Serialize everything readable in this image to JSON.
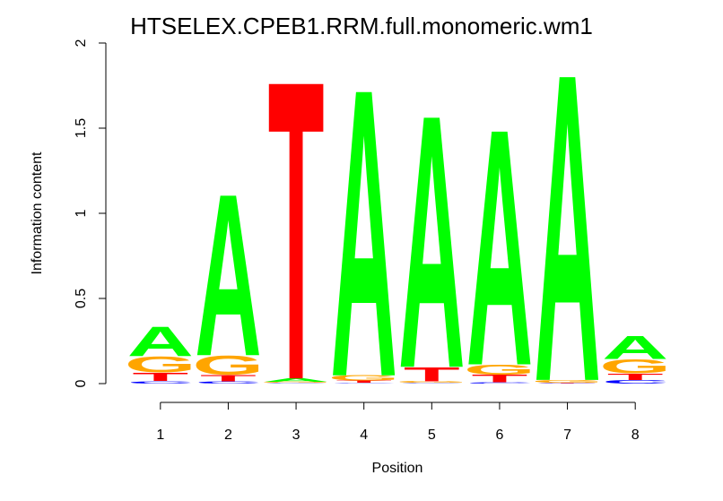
{
  "chart_data": {
    "type": "sequence-logo",
    "title": "HTSELEX.CPEB1.RRM.full.monomeric.wm1",
    "xlabel": "Position",
    "ylabel": "Information content",
    "ylim": [
      0,
      2
    ],
    "y_ticks": [
      "0",
      "0.5",
      "1",
      "1.5",
      "2"
    ],
    "y_tick_values": [
      0,
      0.5,
      1,
      1.5,
      2
    ],
    "positions": [
      "1",
      "2",
      "3",
      "4",
      "5",
      "6",
      "7",
      "8"
    ],
    "colors": {
      "A": "#00ff00",
      "C": "#0000ff",
      "G": "#ffa500",
      "T": "#ff0000"
    },
    "stacks": [
      [
        {
          "letter": "C",
          "height": 0.015
        },
        {
          "letter": "T",
          "height": 0.05
        },
        {
          "letter": "G",
          "height": 0.095
        },
        {
          "letter": "A",
          "height": 0.18
        }
      ],
      [
        {
          "letter": "C",
          "height": 0.012
        },
        {
          "letter": "T",
          "height": 0.04
        },
        {
          "letter": "G",
          "height": 0.115
        },
        {
          "letter": "A",
          "height": 0.98
        }
      ],
      [
        {
          "letter": "C",
          "height": 0.004
        },
        {
          "letter": "G",
          "height": 0.006
        },
        {
          "letter": "A",
          "height": 0.02
        },
        {
          "letter": "T",
          "height": 1.81
        }
      ],
      [
        {
          "letter": "C",
          "height": 0.004
        },
        {
          "letter": "T",
          "height": 0.015
        },
        {
          "letter": "G",
          "height": 0.03
        },
        {
          "letter": "A",
          "height": 1.74
        }
      ],
      [
        {
          "letter": "C",
          "height": 0.004
        },
        {
          "letter": "G",
          "height": 0.01
        },
        {
          "letter": "T",
          "height": 0.085
        },
        {
          "letter": "A",
          "height": 1.53
        }
      ],
      [
        {
          "letter": "C",
          "height": 0.008
        },
        {
          "letter": "T",
          "height": 0.045
        },
        {
          "letter": "G",
          "height": 0.06
        },
        {
          "letter": "A",
          "height": 1.43
        }
      ],
      [
        {
          "letter": "C",
          "height": 0.002
        },
        {
          "letter": "T",
          "height": 0.004
        },
        {
          "letter": "G",
          "height": 0.016
        },
        {
          "letter": "A",
          "height": 1.86
        }
      ],
      [
        {
          "letter": "C",
          "height": 0.02
        },
        {
          "letter": "T",
          "height": 0.04
        },
        {
          "letter": "G",
          "height": 0.085
        },
        {
          "letter": "A",
          "height": 0.14
        }
      ]
    ]
  }
}
